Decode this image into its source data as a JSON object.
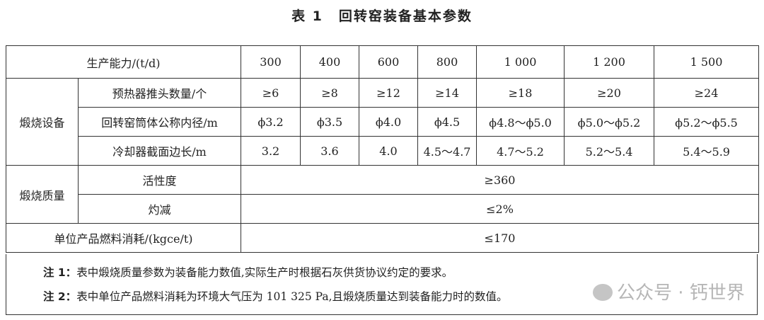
{
  "title": {
    "label": "表 1",
    "text": "回转窑装备基本参数"
  },
  "header": {
    "label": "生产能力/(t/d)",
    "capacities": [
      "300",
      "400",
      "600",
      "800",
      "1 000",
      "1 200",
      "1 500"
    ]
  },
  "equipment": {
    "group": "煅烧设备",
    "rows": [
      {
        "label": "预热器推头数量/个",
        "values": [
          "≥6",
          "≥8",
          "≥12",
          "≥14",
          "≥18",
          "≥20",
          "≥24"
        ]
      },
      {
        "label": "回转窑筒体公称内径/m",
        "values": [
          "ϕ3.2",
          "ϕ3.5",
          "ϕ4.0",
          "ϕ4.5",
          "ϕ4.8～ϕ5.0",
          "ϕ5.0～ϕ5.2",
          "ϕ5.2～ϕ5.5"
        ]
      },
      {
        "label": "冷却器截面边长/m",
        "values": [
          "3.2",
          "3.6",
          "4.0",
          "4.5～4.7",
          "4.7～5.2",
          "5.2～5.4",
          "5.4～5.9"
        ]
      }
    ]
  },
  "quality": {
    "group": "煅烧质量",
    "rows": [
      {
        "label": "活性度",
        "value": "≥360"
      },
      {
        "label": "灼减",
        "value": "≤2%"
      }
    ]
  },
  "fuel": {
    "label": "单位产品燃料消耗/(kgce/t)",
    "value": "≤170"
  },
  "notes": [
    {
      "label": "注 1：",
      "text": "表中煅烧质量参数为装备能力数值,实际生产时根据石灰供货协议约定的要求。"
    },
    {
      "label": "注 2：",
      "text": "表中单位产品燃料消耗为环境大气压为 101 325 Pa,且煅烧质量达到装备能力时的数值。"
    }
  ],
  "watermark": "公众号 · 钙世界"
}
